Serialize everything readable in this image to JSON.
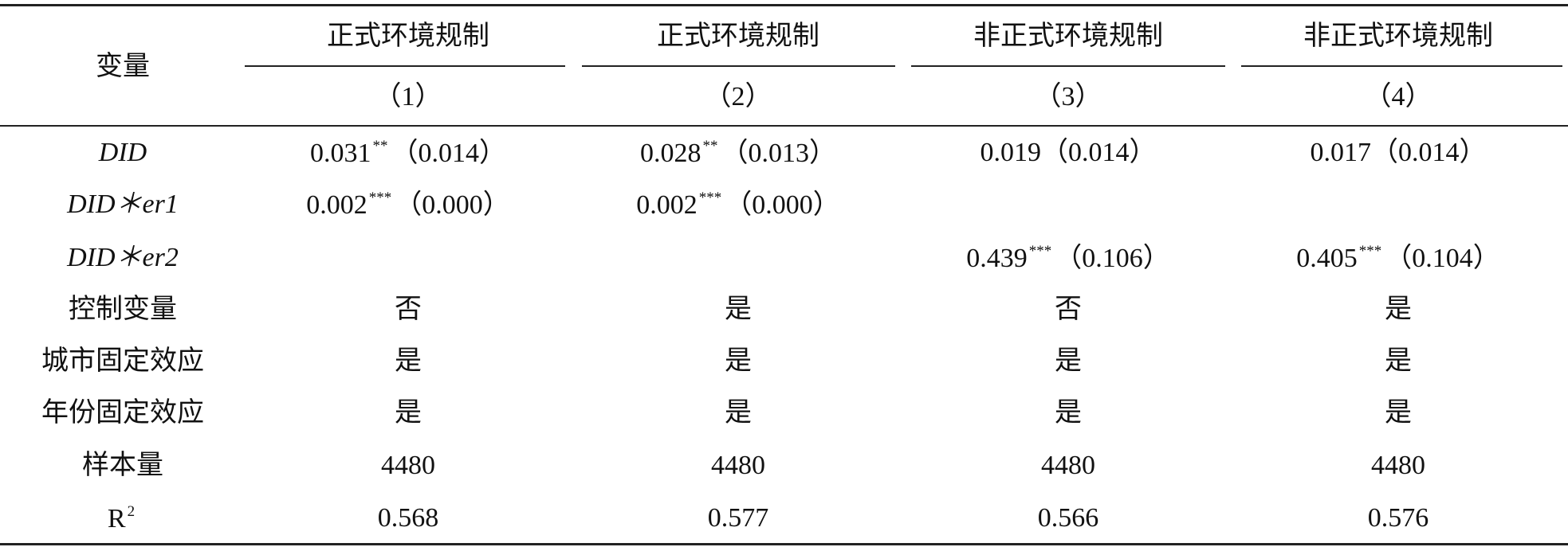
{
  "table": {
    "stub_header": "变量",
    "columns": [
      "正式环境规制",
      "正式环境规制",
      "非正式环境规制",
      "非正式环境规制"
    ],
    "column_numbers": [
      "（1）",
      "（2）",
      "（3）",
      "（4）"
    ],
    "rows": [
      {
        "label": "DID",
        "italic": true,
        "cells": [
          {
            "coef": "0.031",
            "stars": "**",
            "se": "（0.014）"
          },
          {
            "coef": "0.028",
            "stars": "**",
            "se": "（0.013）"
          },
          {
            "coef": "0.019",
            "se": "（0.014）"
          },
          {
            "coef": "0.017",
            "se": "（0.014）"
          }
        ]
      },
      {
        "label": "DID＊er1",
        "italic": true,
        "cells": [
          {
            "coef": "0.002",
            "stars": "***",
            "se": "（0.000）"
          },
          {
            "coef": "0.002",
            "stars": "***",
            "se": "（0.000）"
          },
          null,
          null
        ]
      },
      {
        "label": "DID＊er2",
        "italic": true,
        "cells": [
          null,
          null,
          {
            "coef": "0.439",
            "stars": "***",
            "se": "（0.106）"
          },
          {
            "coef": "0.405",
            "stars": "***",
            "se": "（0.104）"
          }
        ]
      },
      {
        "label": "控制变量",
        "cells": [
          {
            "coef": "否"
          },
          {
            "coef": "是"
          },
          {
            "coef": "否"
          },
          {
            "coef": "是"
          }
        ]
      },
      {
        "label": "城市固定效应",
        "cells": [
          {
            "coef": "是"
          },
          {
            "coef": "是"
          },
          {
            "coef": "是"
          },
          {
            "coef": "是"
          }
        ]
      },
      {
        "label": "年份固定效应",
        "cells": [
          {
            "coef": "是"
          },
          {
            "coef": "是"
          },
          {
            "coef": "是"
          },
          {
            "coef": "是"
          }
        ]
      },
      {
        "label": "样本量",
        "cells": [
          {
            "coef": "4480"
          },
          {
            "coef": "4480"
          },
          {
            "coef": "4480"
          },
          {
            "coef": "4480"
          }
        ]
      },
      {
        "label": "R",
        "label_sup": "2",
        "cells": [
          {
            "coef": "0.568"
          },
          {
            "coef": "0.577"
          },
          {
            "coef": "0.566"
          },
          {
            "coef": "0.576"
          }
        ]
      }
    ]
  }
}
